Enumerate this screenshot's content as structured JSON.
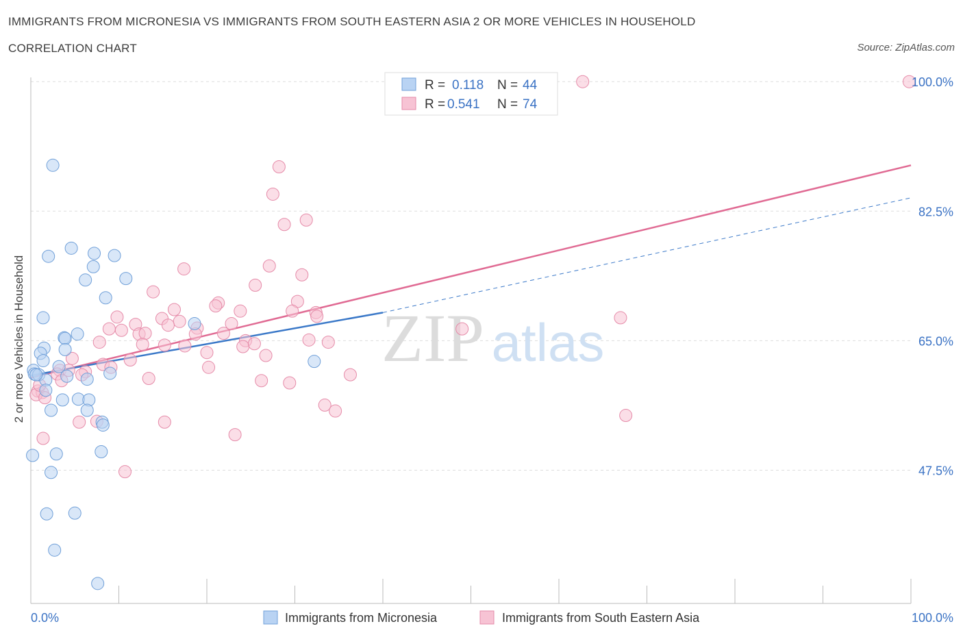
{
  "title": "IMMIGRANTS FROM MICRONESIA VS IMMIGRANTS FROM SOUTH EASTERN ASIA 2 OR MORE VEHICLES IN HOUSEHOLD",
  "subtitle": "CORRELATION CHART",
  "source": "Source: ZipAtlas.com",
  "watermark": {
    "zip": "ZIP",
    "atlas": "atlas"
  },
  "colors": {
    "blue_fill": "#b9d3f3",
    "blue_stroke": "#6f9fd8",
    "blue_line": "#3a78c8",
    "pink_fill": "#f7c3d4",
    "pink_stroke": "#e58aa8",
    "pink_line": "#e06a93",
    "axis_label": "#3a72c4",
    "grid": "#dddddd"
  },
  "legend": {
    "rows": [
      {
        "r_label": "R = ",
        "r_value": "0.118",
        "n_label": "N = ",
        "n_value": "44"
      },
      {
        "r_label": "R = ",
        "r_value": "0.541",
        "n_label": "N = ",
        "n_value": "74"
      }
    ]
  },
  "chart_data": {
    "type": "scatter",
    "title": "IMMIGRANTS FROM MICRONESIA VS IMMIGRANTS FROM SOUTH EASTERN ASIA 2 OR MORE VEHICLES IN HOUSEHOLD",
    "ylabel": "2 or more Vehicles in Household",
    "xlabel": "",
    "xlim": [
      0,
      100
    ],
    "ylim": [
      29.5,
      101.5
    ],
    "x_tick_labels": [
      {
        "value": 0,
        "label": "0.0%"
      },
      {
        "value": 100,
        "label": "100.0%"
      }
    ],
    "y_tick_labels": [
      {
        "value": 47.5,
        "label": "47.5%"
      },
      {
        "value": 65.0,
        "label": "65.0%"
      },
      {
        "value": 82.5,
        "label": "82.5%"
      },
      {
        "value": 100.0,
        "label": "100.0%"
      }
    ],
    "grid": true,
    "legend_position": "top-center",
    "series": [
      {
        "name": "Immigrants from Micronesia",
        "color": "#b9d3f3",
        "R": 0.118,
        "N": 44,
        "trend": {
          "x": [
            0,
            40
          ],
          "y": [
            60.3,
            68.8
          ],
          "extended_x": [
            40,
            100
          ],
          "extended_y": [
            68.8,
            84.3
          ]
        },
        "points": [
          {
            "x": 2.5,
            "y": 88.7
          },
          {
            "x": 0.3,
            "y": 61.0
          },
          {
            "x": 0.4,
            "y": 60.5
          },
          {
            "x": 1.4,
            "y": 68.1
          },
          {
            "x": 2.0,
            "y": 76.4
          },
          {
            "x": 4.6,
            "y": 77.5
          },
          {
            "x": 7.2,
            "y": 76.8
          },
          {
            "x": 9.5,
            "y": 76.5
          },
          {
            "x": 7.1,
            "y": 75.0
          },
          {
            "x": 6.2,
            "y": 73.2
          },
          {
            "x": 10.8,
            "y": 73.4
          },
          {
            "x": 8.5,
            "y": 70.8
          },
          {
            "x": 18.6,
            "y": 67.3
          },
          {
            "x": 1.5,
            "y": 64.0
          },
          {
            "x": 1.1,
            "y": 63.3
          },
          {
            "x": 3.8,
            "y": 65.4
          },
          {
            "x": 3.9,
            "y": 65.3
          },
          {
            "x": 5.3,
            "y": 65.9
          },
          {
            "x": 3.9,
            "y": 63.8
          },
          {
            "x": 1.4,
            "y": 62.3
          },
          {
            "x": 0.9,
            "y": 60.4
          },
          {
            "x": 3.2,
            "y": 61.5
          },
          {
            "x": 4.1,
            "y": 60.2
          },
          {
            "x": 1.7,
            "y": 59.7
          },
          {
            "x": 6.4,
            "y": 59.8
          },
          {
            "x": 9.0,
            "y": 60.6
          },
          {
            "x": 1.7,
            "y": 58.3
          },
          {
            "x": 3.6,
            "y": 57.0
          },
          {
            "x": 5.4,
            "y": 57.1
          },
          {
            "x": 6.6,
            "y": 57.0
          },
          {
            "x": 2.3,
            "y": 55.6
          },
          {
            "x": 6.4,
            "y": 55.6
          },
          {
            "x": 8.1,
            "y": 54.0
          },
          {
            "x": 8.2,
            "y": 53.6
          },
          {
            "x": 0.2,
            "y": 49.5
          },
          {
            "x": 2.9,
            "y": 49.7
          },
          {
            "x": 8.0,
            "y": 50.0
          },
          {
            "x": 2.3,
            "y": 47.2
          },
          {
            "x": 1.8,
            "y": 41.6
          },
          {
            "x": 5.0,
            "y": 41.7
          },
          {
            "x": 2.7,
            "y": 36.7
          },
          {
            "x": 7.6,
            "y": 32.2
          },
          {
            "x": 32.2,
            "y": 62.2
          },
          {
            "x": 0.6,
            "y": 60.4
          }
        ]
      },
      {
        "name": "Immigrants from South Eastern Asia",
        "color": "#f7c3d4",
        "R": 0.541,
        "N": 74,
        "trend": {
          "x": [
            0,
            100
          ],
          "y": [
            60.0,
            88.7
          ]
        },
        "points": [
          {
            "x": 62.7,
            "y": 100.0
          },
          {
            "x": 99.8,
            "y": 100.0
          },
          {
            "x": 28.2,
            "y": 88.5
          },
          {
            "x": 27.5,
            "y": 84.8
          },
          {
            "x": 31.3,
            "y": 81.3
          },
          {
            "x": 28.8,
            "y": 80.7
          },
          {
            "x": 27.1,
            "y": 75.1
          },
          {
            "x": 17.4,
            "y": 74.7
          },
          {
            "x": 30.8,
            "y": 73.9
          },
          {
            "x": 25.5,
            "y": 72.5
          },
          {
            "x": 13.9,
            "y": 71.6
          },
          {
            "x": 30.3,
            "y": 70.3
          },
          {
            "x": 21.3,
            "y": 70.1
          },
          {
            "x": 21.0,
            "y": 69.7
          },
          {
            "x": 16.3,
            "y": 69.2
          },
          {
            "x": 23.8,
            "y": 69.0
          },
          {
            "x": 29.7,
            "y": 69.0
          },
          {
            "x": 32.4,
            "y": 68.8
          },
          {
            "x": 32.5,
            "y": 68.3
          },
          {
            "x": 9.8,
            "y": 68.2
          },
          {
            "x": 14.9,
            "y": 68.0
          },
          {
            "x": 16.9,
            "y": 67.6
          },
          {
            "x": 11.9,
            "y": 67.2
          },
          {
            "x": 15.6,
            "y": 67.1
          },
          {
            "x": 18.9,
            "y": 66.7
          },
          {
            "x": 22.8,
            "y": 67.3
          },
          {
            "x": 10.3,
            "y": 66.4
          },
          {
            "x": 8.9,
            "y": 66.6
          },
          {
            "x": 12.3,
            "y": 65.9
          },
          {
            "x": 13.0,
            "y": 66.0
          },
          {
            "x": 18.7,
            "y": 65.9
          },
          {
            "x": 21.9,
            "y": 66.0
          },
          {
            "x": 31.6,
            "y": 65.1
          },
          {
            "x": 24.4,
            "y": 65.0
          },
          {
            "x": 7.8,
            "y": 64.8
          },
          {
            "x": 12.7,
            "y": 64.5
          },
          {
            "x": 15.2,
            "y": 64.4
          },
          {
            "x": 17.5,
            "y": 64.3
          },
          {
            "x": 24.1,
            "y": 64.2
          },
          {
            "x": 25.4,
            "y": 64.6
          },
          {
            "x": 33.8,
            "y": 64.8
          },
          {
            "x": 20.0,
            "y": 63.4
          },
          {
            "x": 26.7,
            "y": 63.0
          },
          {
            "x": 4.7,
            "y": 62.6
          },
          {
            "x": 11.3,
            "y": 62.4
          },
          {
            "x": 8.2,
            "y": 61.8
          },
          {
            "x": 9.1,
            "y": 61.4
          },
          {
            "x": 20.2,
            "y": 61.4
          },
          {
            "x": 3.3,
            "y": 61.0
          },
          {
            "x": 4.3,
            "y": 61.0
          },
          {
            "x": 6.2,
            "y": 60.8
          },
          {
            "x": 3.0,
            "y": 60.5
          },
          {
            "x": 5.8,
            "y": 60.4
          },
          {
            "x": 36.3,
            "y": 60.4
          },
          {
            "x": 13.4,
            "y": 59.9
          },
          {
            "x": 26.2,
            "y": 59.6
          },
          {
            "x": 29.4,
            "y": 59.3
          },
          {
            "x": 0.8,
            "y": 58.2
          },
          {
            "x": 1.3,
            "y": 58.0
          },
          {
            "x": 3.5,
            "y": 59.6
          },
          {
            "x": 0.6,
            "y": 57.7
          },
          {
            "x": 1.6,
            "y": 57.3
          },
          {
            "x": 33.4,
            "y": 56.3
          },
          {
            "x": 34.6,
            "y": 55.5
          },
          {
            "x": 5.5,
            "y": 54.0
          },
          {
            "x": 7.5,
            "y": 54.1
          },
          {
            "x": 15.2,
            "y": 54.0
          },
          {
            "x": 23.2,
            "y": 52.3
          },
          {
            "x": 1.4,
            "y": 51.8
          },
          {
            "x": 10.7,
            "y": 47.3
          },
          {
            "x": 49.0,
            "y": 66.6
          },
          {
            "x": 67.0,
            "y": 68.1
          },
          {
            "x": 67.6,
            "y": 54.9
          },
          {
            "x": 1.0,
            "y": 59.0
          }
        ]
      }
    ],
    "legend_entries": [
      "Immigrants from Micronesia",
      "Immigrants from South Eastern Asia"
    ]
  }
}
